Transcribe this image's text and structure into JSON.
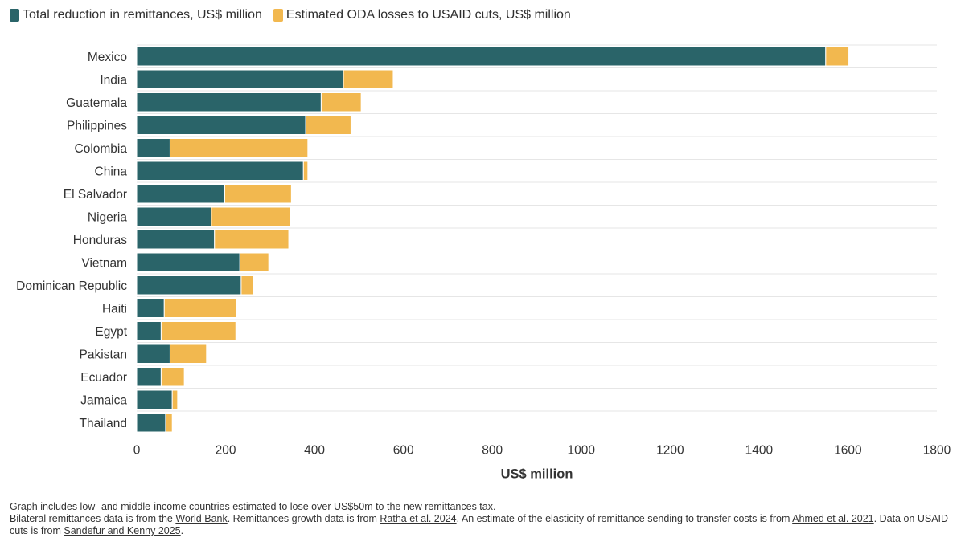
{
  "legend": {
    "remit_label": "Total reduction in remittances, US$ million",
    "oda_label": "Estimated ODA losses to USAID cuts, US$ million"
  },
  "colors": {
    "remittances": "#2a6469",
    "oda": "#f2b84f",
    "grid": "#e6e6e6",
    "axis_text": "#333333"
  },
  "chart_data": {
    "type": "bar",
    "orientation": "horizontal",
    "stacked": true,
    "categories": [
      "Mexico",
      "India",
      "Guatemala",
      "Philippines",
      "Colombia",
      "China",
      "El Salvador",
      "Nigeria",
      "Honduras",
      "Vietnam",
      "Dominican Republic",
      "Haiti",
      "Egypt",
      "Pakistan",
      "Ecuador",
      "Jamaica",
      "Thailand"
    ],
    "series": [
      {
        "name": "Total reduction in remittances, US$ million",
        "values": [
          1550,
          465,
          415,
          380,
          75,
          375,
          198,
          168,
          175,
          232,
          235,
          62,
          55,
          75,
          55,
          80,
          65
        ]
      },
      {
        "name": "Estimated ODA losses to USAID cuts, US$ million",
        "values": [
          52,
          112,
          90,
          102,
          310,
          10,
          150,
          178,
          167,
          65,
          27,
          163,
          168,
          82,
          52,
          12,
          15
        ]
      }
    ],
    "xlabel": "US$ million",
    "ylabel": "",
    "xlim": [
      0,
      1800
    ],
    "xticks": [
      0,
      200,
      400,
      600,
      800,
      1000,
      1200,
      1400,
      1600,
      1800
    ],
    "grid": true,
    "legend_position": "top-left"
  },
  "notes": {
    "line1": "Graph includes low- and middle-income countries estimated to lose over US$50m to the new remittances tax.",
    "src_prefix": "Bilateral remittances data is from the ",
    "src_link1": "World Bank",
    "src_mid1": ". Remittances growth data is from ",
    "src_link2": "Ratha et al. 2024",
    "src_mid2": ". An estimate of the elasticity of remittance sending to transfer costs is from ",
    "src_link3": "Ahmed et al. 2021",
    "src_mid3": ". Data on USAID cuts is from ",
    "src_link4": "Sandefur and Kenny 2025",
    "src_end": "."
  }
}
